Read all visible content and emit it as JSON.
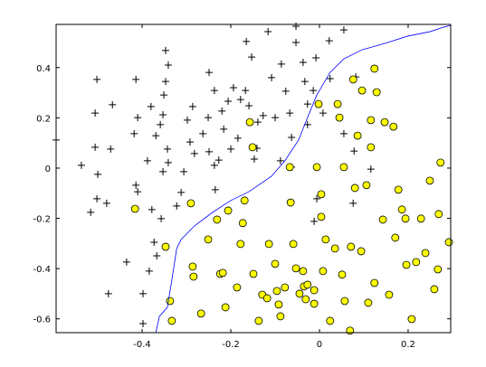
{
  "chart_data": {
    "type": "scatter",
    "xlim": [
      -0.594,
      0.296
    ],
    "ylim": [
      -0.655,
      0.572
    ],
    "xticks": [
      -0.4,
      -0.2,
      0,
      0.2
    ],
    "yticks": [
      -0.6,
      -0.4,
      -0.2,
      0,
      0.2,
      0.4
    ],
    "series": [
      {
        "marker": "plus",
        "color": "#000000",
        "x": [
          -0.594,
          -0.502,
          -0.506,
          -0.506,
          -0.471,
          -0.537,
          -0.5,
          -0.516,
          -0.502,
          -0.48,
          -0.467,
          -0.414,
          -0.41,
          -0.418,
          -0.414,
          -0.41,
          -0.388,
          -0.38,
          -0.369,
          -0.347,
          -0.341,
          -0.347,
          -0.351,
          -0.353,
          -0.359,
          -0.343,
          -0.341,
          -0.353,
          -0.378,
          -0.357,
          -0.322,
          -0.312,
          -0.306,
          -0.298,
          -0.292,
          -0.282,
          -0.286,
          -0.249,
          -0.237,
          -0.251,
          -0.263,
          -0.249,
          -0.237,
          -0.227,
          -0.235,
          -0.22,
          -0.216,
          -0.206,
          -0.194,
          -0.184,
          -0.178,
          -0.2,
          -0.167,
          -0.165,
          -0.153,
          -0.159,
          -0.139,
          -0.141,
          -0.147,
          -0.127,
          -0.116,
          -0.108,
          -0.1,
          -0.086,
          -0.076,
          -0.067,
          -0.063,
          -0.063,
          -0.088,
          -0.053,
          -0.053,
          -0.037,
          -0.033,
          -0.027,
          -0.027,
          -0.014,
          -0.008,
          0.008,
          0.022,
          0.024,
          0.055,
          0.082,
          -0.006,
          -0.012,
          0.055,
          0.078,
          0.076,
          0.116,
          -0.373,
          -0.367,
          -0.435,
          -0.384,
          -0.398,
          -0.476,
          -0.398
        ],
        "y": [
          0.112,
          0.353,
          0.219,
          0.083,
          0.076,
          0.011,
          -0.025,
          -0.176,
          -0.122,
          -0.14,
          0.252,
          0.353,
          0.201,
          0.137,
          -0.068,
          -0.094,
          0.029,
          0.245,
          0.129,
          0.468,
          0.41,
          0.345,
          0.291,
          0.212,
          0.173,
          0.076,
          0.022,
          -0.014,
          -0.165,
          -0.201,
          -0.151,
          -0.097,
          -0.014,
          0.191,
          0.104,
          0.058,
          0.245,
          0.381,
          0.309,
          0.201,
          0.137,
          0.065,
          0.011,
          0.032,
          -0.086,
          0.227,
          0.155,
          0.266,
          0.32,
          0.119,
          0.273,
          0.076,
          0.309,
          0.504,
          0.442,
          0.248,
          0.183,
          0.079,
          0.036,
          0.209,
          0.543,
          0.36,
          0.201,
          0.414,
          0.306,
          0.219,
          0.122,
          0.004,
          0.029,
          0.5,
          0.565,
          0.421,
          0.345,
          0.255,
          0.173,
          0.309,
          0.439,
          0.219,
          0.507,
          0.356,
          0.55,
          0.363,
          -0.122,
          -0.212,
          0.137,
          0.068,
          -0.14,
          -0.004,
          -0.295,
          -0.349,
          -0.374,
          -0.41,
          -0.5,
          -0.5,
          -0.619
        ]
      },
      {
        "marker": "circle",
        "color": "#ffff00",
        "x": [
          -0.416,
          -0.347,
          -0.337,
          -0.333,
          -0.286,
          -0.29,
          -0.284,
          -0.267,
          -0.251,
          -0.231,
          -0.224,
          -0.218,
          -0.212,
          -0.206,
          -0.186,
          -0.178,
          -0.173,
          -0.169,
          -0.157,
          -0.151,
          -0.149,
          -0.137,
          -0.129,
          -0.118,
          -0.114,
          -0.1,
          -0.096,
          -0.092,
          -0.088,
          -0.078,
          -0.067,
          -0.065,
          -0.059,
          -0.053,
          -0.045,
          -0.037,
          -0.035,
          -0.027,
          -0.031,
          -0.012,
          -0.012,
          -0.006,
          -0.002,
          0.004,
          0.004,
          0.008,
          0.024,
          0.014,
          0.035,
          0.041,
          0.045,
          0.051,
          0.055,
          0.057,
          0.071,
          0.069,
          0.076,
          0.096,
          0.086,
          0.08,
          0.094,
          0.106,
          0.11,
          0.116,
          0.116,
          0.124,
          0.129,
          0.143,
          0.147,
          0.157,
          0.167,
          0.171,
          0.178,
          0.186,
          0.194,
          0.196,
          0.208,
          0.218,
          0.229,
          0.239,
          0.249,
          0.259,
          0.269,
          0.267,
          0.273,
          0.292,
          0.124
        ],
        "y": [
          -0.162,
          -0.313,
          -0.529,
          -0.608,
          -0.392,
          -0.14,
          -0.432,
          -0.579,
          -0.284,
          -0.205,
          -0.421,
          -0.417,
          -0.554,
          -0.169,
          -0.475,
          -0.302,
          -0.219,
          -0.129,
          0.183,
          0.083,
          -0.421,
          -0.608,
          -0.504,
          -0.518,
          -0.302,
          -0.381,
          -0.489,
          -0.543,
          -0.59,
          -0.475,
          0.004,
          -0.137,
          -0.302,
          -0.399,
          -0.5,
          -0.41,
          -0.471,
          -0.464,
          -0.522,
          -0.486,
          -0.54,
          0.004,
          0.255,
          -0.104,
          -0.194,
          -0.41,
          -0.608,
          -0.284,
          -0.32,
          0.255,
          0.201,
          -0.424,
          0.004,
          -0.529,
          -0.313,
          -0.647,
          0.353,
          0.309,
          0.129,
          -0.079,
          -0.331,
          -0.068,
          -0.536,
          0.191,
          0.083,
          0.396,
          0.302,
          -0.205,
          0.183,
          -0.504,
          0.165,
          -0.277,
          -0.086,
          -0.165,
          -0.201,
          -0.385,
          -0.601,
          -0.374,
          -0.201,
          -0.338,
          -0.05,
          -0.482,
          -0.183,
          -0.403,
          0.022,
          -0.295,
          -0.457
        ]
      },
      {
        "marker": "line",
        "color": "#0000ff",
        "x": [
          -0.369,
          -0.361,
          -0.343,
          -0.333,
          -0.322,
          -0.312,
          -0.282,
          -0.241,
          -0.2,
          -0.159,
          -0.108,
          -0.078,
          -0.047,
          -0.027,
          -0.006,
          0.024,
          0.055,
          0.096,
          0.147,
          0.198,
          0.249,
          0.28,
          0.296
        ],
        "y": [
          -0.655,
          -0.59,
          -0.554,
          -0.446,
          -0.32,
          -0.284,
          -0.23,
          -0.176,
          -0.129,
          -0.094,
          -0.032,
          0.029,
          0.112,
          0.201,
          0.291,
          0.381,
          0.435,
          0.471,
          0.496,
          0.525,
          0.543,
          0.561,
          0.568
        ]
      }
    ]
  }
}
